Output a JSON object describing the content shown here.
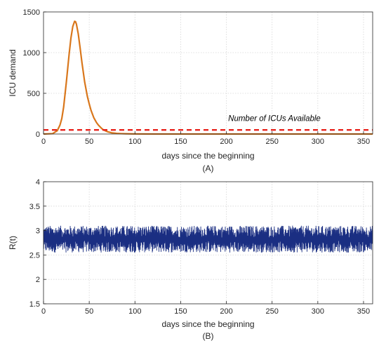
{
  "chart_data": [
    {
      "id": "A",
      "type": "line",
      "caption": "(A)",
      "xlabel": "days since the beginning",
      "ylabel": "ICU demand",
      "xlim": [
        0,
        360
      ],
      "ylim": [
        0,
        1500
      ],
      "xticks": [
        0,
        50,
        100,
        150,
        200,
        250,
        300,
        350
      ],
      "yticks": [
        0,
        500,
        1000,
        1500
      ],
      "grid": true,
      "series": [
        {
          "color": "#d9771c",
          "style": "solid",
          "x": [
            0,
            10,
            15,
            18,
            20,
            22,
            25,
            28,
            30,
            32,
            34,
            35,
            36,
            38,
            40,
            42,
            45,
            48,
            50,
            52,
            55,
            58,
            60,
            63,
            65,
            68,
            70,
            75,
            80,
            85,
            90,
            100,
            120,
            150,
            200,
            250,
            300,
            360
          ],
          "y": [
            0,
            5,
            40,
            110,
            190,
            330,
            640,
            980,
            1180,
            1320,
            1385,
            1380,
            1350,
            1230,
            1060,
            880,
            640,
            460,
            370,
            290,
            200,
            140,
            110,
            75,
            55,
            38,
            28,
            14,
            8,
            5,
            3,
            1,
            0,
            0,
            0,
            0,
            0,
            0
          ]
        },
        {
          "name": "Number of ICUs Available",
          "color": "#e8231d",
          "style": "dashed",
          "x": [
            0,
            360
          ],
          "y": [
            50,
            50
          ]
        }
      ],
      "annotations": [
        {
          "text": "Number of ICUs Available",
          "x": 202,
          "y": 160
        }
      ]
    },
    {
      "id": "B",
      "type": "line",
      "caption": "(B)",
      "xlabel": "days since the beginning",
      "ylabel": "R(t)",
      "xlim": [
        0,
        360
      ],
      "ylim": [
        1.5,
        4
      ],
      "xticks": [
        0,
        50,
        100,
        150,
        200,
        250,
        300,
        350
      ],
      "yticks": [
        1.5,
        2,
        2.5,
        3,
        3.5,
        4
      ],
      "yticklabels": [
        "1.5",
        "2",
        "2.5",
        "3",
        "3.5",
        "4"
      ],
      "grid": true,
      "series": [
        {
          "color": "#1a2e82",
          "style": "solid",
          "x_range": [
            0,
            360
          ],
          "y_range": [
            2.55,
            3.1
          ]
        }
      ]
    }
  ]
}
